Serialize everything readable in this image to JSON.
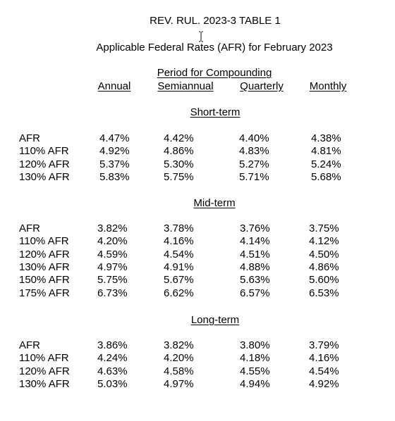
{
  "title": "REV. RUL. 2023-3 TABLE 1",
  "subtitle": "Applicable Federal Rates (AFR) for February 2023",
  "compounding_header": "Period for Compounding",
  "columns": [
    "Annual",
    "Semiannual",
    "Quarterly",
    "Monthly"
  ],
  "sections": [
    {
      "heading": "Short-term",
      "rows": [
        {
          "label": "AFR",
          "values": [
            "4.47%",
            "4.42%",
            "4.40%",
            "4.38%"
          ]
        },
        {
          "label": "110% AFR",
          "values": [
            "4.92%",
            "4.86%",
            "4.83%",
            "4.81%"
          ]
        },
        {
          "label": "120% AFR",
          "values": [
            "5.37%",
            "5.30%",
            "5.27%",
            "5.24%"
          ]
        },
        {
          "label": "130% AFR",
          "values": [
            "5.83%",
            "5.75%",
            "5.71%",
            "5.68%"
          ]
        }
      ]
    },
    {
      "heading": "Mid-term",
      "rows": [
        {
          "label": "AFR",
          "values": [
            "3.82%",
            "3.78%",
            "3.76%",
            "3.75%"
          ]
        },
        {
          "label": "110% AFR",
          "values": [
            "4.20%",
            "4.16%",
            "4.14%",
            "4.12%"
          ]
        },
        {
          "label": "120% AFR",
          "values": [
            "4.59%",
            "4.54%",
            "4.51%",
            "4.50%"
          ]
        },
        {
          "label": "130% AFR",
          "values": [
            "4.97%",
            "4.91%",
            "4.88%",
            "4.86%"
          ]
        },
        {
          "label": "150% AFR",
          "values": [
            "5.75%",
            "5.67%",
            "5.63%",
            "5.60%"
          ]
        },
        {
          "label": "175% AFR",
          "values": [
            "6.73%",
            "6.62%",
            "6.57%",
            "6.53%"
          ]
        }
      ]
    },
    {
      "heading": "Long-term",
      "rows": [
        {
          "label": "AFR",
          "values": [
            "3.86%",
            "3.82%",
            "3.80%",
            "3.79%"
          ]
        },
        {
          "label": "110% AFR",
          "values": [
            "4.24%",
            "4.20%",
            "4.18%",
            "4.16%"
          ]
        },
        {
          "label": "120% AFR",
          "values": [
            "4.63%",
            "4.58%",
            "4.55%",
            "4.54%"
          ]
        },
        {
          "label": "130% AFR",
          "values": [
            "5.03%",
            "4.97%",
            "4.94%",
            "4.92%"
          ]
        }
      ]
    }
  ]
}
